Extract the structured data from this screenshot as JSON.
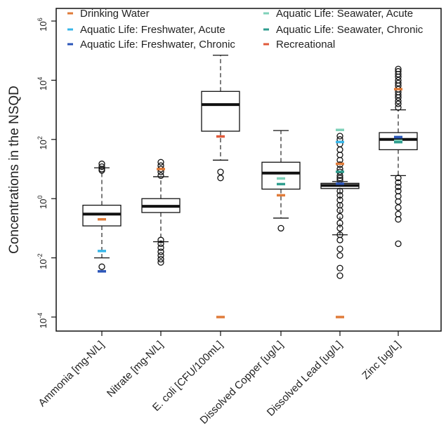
{
  "chart_data": {
    "type": "box",
    "ylabel": "Concentrations in the NSQD",
    "yscale": "log10",
    "ylim": [
      0.0001,
      1000000
    ],
    "yticks": [
      {
        "value": 0.0001,
        "base": "10",
        "exp": "-4"
      },
      {
        "value": 0.01,
        "base": "10",
        "exp": "-2"
      },
      {
        "value": 1,
        "base": "10",
        "exp": "0"
      },
      {
        "value": 100,
        "base": "10",
        "exp": "2"
      },
      {
        "value": 10000,
        "base": "10",
        "exp": "4"
      },
      {
        "value": 1000000,
        "base": "10",
        "exp": "6"
      }
    ],
    "categories": [
      "Ammonia [mg-N/L]",
      "Nitrate [mg-N/L]",
      "E. coli [CFU/100mL]",
      "Dissolved Copper [ug/L]",
      "Dissolved Lead [ug/L]",
      "Zinc [ug/L]"
    ],
    "boxes": [
      {
        "whisker_low": 0.01,
        "q1": 0.12,
        "median": 0.3,
        "q3": 0.6,
        "whisker_high": 11,
        "outliers": [
          0.005,
          9,
          10,
          12,
          15
        ]
      },
      {
        "whisker_low": 0.035,
        "q1": 0.34,
        "median": 0.55,
        "q3": 1,
        "whisker_high": 5.5,
        "outliers": [
          0.007,
          0.009,
          0.012,
          0.016,
          0.022,
          0.03,
          0.04,
          6,
          8,
          10,
          13,
          17
        ]
      },
      {
        "whisker_low": 20,
        "q1": 190,
        "median": 1500,
        "q3": 4200,
        "whisker_high": 70000,
        "outliers": [
          5,
          8
        ]
      },
      {
        "whisker_low": 0.22,
        "q1": 2.1,
        "median": 7.3,
        "q3": 17,
        "whisker_high": 200,
        "outliers": [
          0.1
        ]
      },
      {
        "whisker_low": 0.06,
        "q1": 2.2,
        "median": 2.8,
        "q3": 3.3,
        "whisker_high": 3.8,
        "outliers": [
          0.0025,
          0.0045,
          0.012,
          0.02,
          0.04,
          0.06,
          0.1,
          0.15,
          0.25,
          0.4,
          0.6,
          0.9,
          1.3,
          1.8,
          4.2,
          5,
          6,
          8,
          10,
          14,
          20,
          30,
          45,
          70,
          100,
          130
        ]
      },
      {
        "whisker_low": 6,
        "q1": 45,
        "median": 100,
        "q3": 170,
        "whisker_high": 1000,
        "outliers": [
          0.03,
          0.2,
          0.3,
          0.5,
          0.8,
          1.2,
          1.8,
          2.5,
          3.5,
          5,
          1200,
          1600,
          2000,
          2600,
          3200,
          4000,
          5000,
          6500,
          8000,
          10000,
          13000,
          16000,
          20000,
          24000
        ]
      }
    ],
    "legend": {
      "placement": "top",
      "entries": [
        {
          "name": "Drinking Water",
          "color": "#e07b39"
        },
        {
          "name": "Aquatic Life: Freshwater, Acute",
          "color": "#38b6e8"
        },
        {
          "name": "Aquatic Life: Freshwater, Chronic",
          "color": "#2b55b8"
        },
        {
          "name": "Aquatic Life: Seawater, Acute",
          "color": "#7fd1b9"
        },
        {
          "name": "Aquatic Life: Seawater, Chronic",
          "color": "#2f9e8f"
        },
        {
          "name": "Recreational",
          "color": "#e05a3a"
        }
      ]
    },
    "criteria": [
      {
        "category": 0,
        "value": 0.2,
        "criterion": "Drinking Water"
      },
      {
        "category": 0,
        "value": 0.017,
        "criterion": "Aquatic Life: Freshwater, Acute"
      },
      {
        "category": 0,
        "value": 0.0035,
        "criterion": "Aquatic Life: Freshwater, Chronic"
      },
      {
        "category": 1,
        "value": 10,
        "criterion": "Drinking Water"
      },
      {
        "category": 2,
        "value": 126,
        "criterion": "Recreational"
      },
      {
        "category": 2,
        "value": 0.0001,
        "criterion": "Drinking Water"
      },
      {
        "category": 3,
        "value": 1.3,
        "criterion": "Drinking Water"
      },
      {
        "category": 3,
        "value": 4.8,
        "criterion": "Aquatic Life: Seawater, Acute"
      },
      {
        "category": 3,
        "value": 3.1,
        "criterion": "Aquatic Life: Seawater, Chronic"
      },
      {
        "category": 4,
        "value": 82,
        "criterion": "Aquatic Life: Freshwater, Acute"
      },
      {
        "category": 4,
        "value": 3.2,
        "criterion": "Aquatic Life: Freshwater, Chronic"
      },
      {
        "category": 4,
        "value": 210,
        "criterion": "Aquatic Life: Seawater, Acute"
      },
      {
        "category": 4,
        "value": 8.1,
        "criterion": "Aquatic Life: Seawater, Chronic"
      },
      {
        "category": 4,
        "value": 15,
        "criterion": "Drinking Water"
      },
      {
        "category": 4,
        "value": 0.0001,
        "criterion": "Drinking Water"
      },
      {
        "category": 5,
        "value": 5000,
        "criterion": "Drinking Water"
      },
      {
        "category": 5,
        "value": 120,
        "criterion": "Aquatic Life: Freshwater, Acute"
      },
      {
        "category": 5,
        "value": 120,
        "criterion": "Aquatic Life: Freshwater, Chronic"
      },
      {
        "category": 5,
        "value": 90,
        "criterion": "Aquatic Life: Seawater, Acute"
      },
      {
        "category": 5,
        "value": 81,
        "criterion": "Aquatic Life: Seawater, Chronic"
      }
    ]
  }
}
